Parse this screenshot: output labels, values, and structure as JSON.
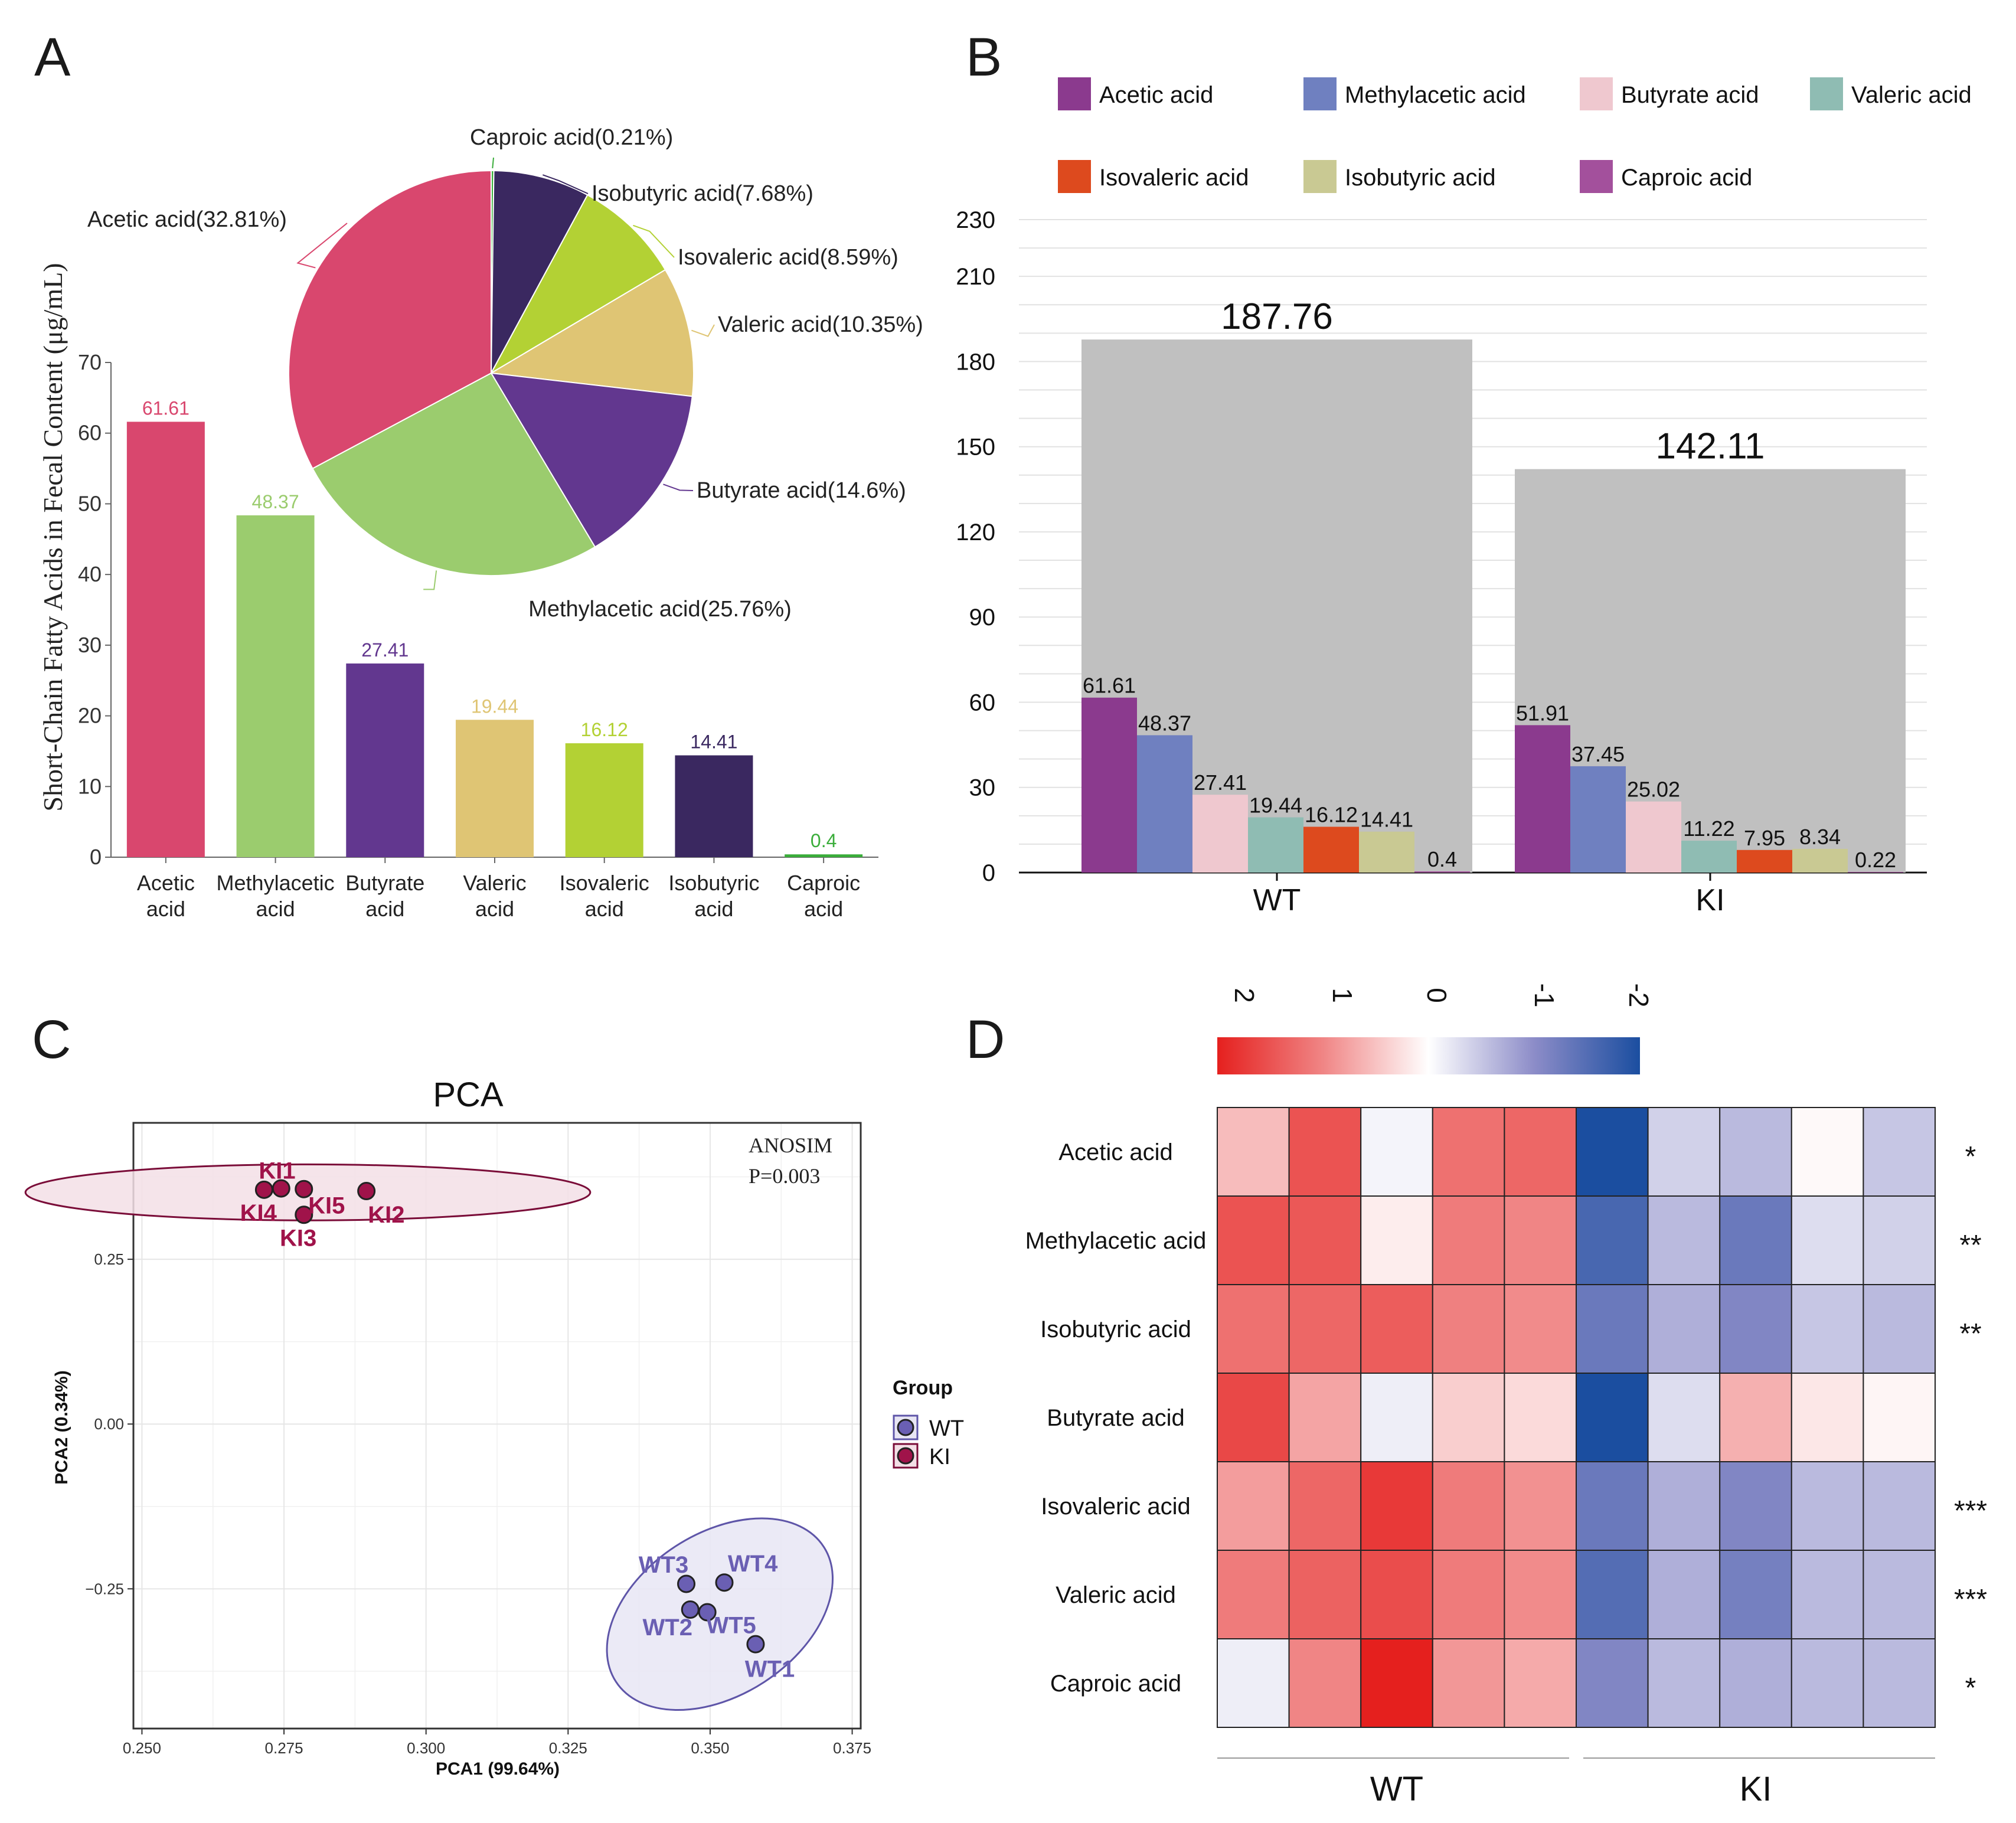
{
  "panels": {
    "A": "A",
    "B": "B",
    "C": "C",
    "D": "D"
  },
  "chart_data": [
    {
      "id": "A-bar",
      "type": "bar",
      "ylabel": "Short-Chain Fatty Acids in Fecal Content (μg/mL)",
      "ylim": [
        0,
        70
      ],
      "yticks": [
        0,
        10,
        20,
        30,
        40,
        50,
        60,
        70
      ],
      "categories": [
        [
          "Acetic",
          "acid"
        ],
        [
          "Methylacetic",
          "acid"
        ],
        [
          "Butyrate",
          "acid"
        ],
        [
          "Valeric",
          "acid"
        ],
        [
          "Isovaleric",
          "acid"
        ],
        [
          "Isobutyric",
          "acid"
        ],
        [
          "Caproic",
          "acid"
        ]
      ],
      "values": [
        61.61,
        48.37,
        27.41,
        19.44,
        16.12,
        14.41,
        0.4
      ],
      "value_labels": [
        "61.61",
        "48.37",
        "27.41",
        "19.44",
        "16.12",
        "14.41",
        "0.4"
      ],
      "colors": [
        "#d9476e",
        "#9bcc6e",
        "#62378f",
        "#dfc574",
        "#b3d134",
        "#3a2860",
        "#3aad3a"
      ]
    },
    {
      "id": "A-pie",
      "type": "pie",
      "slices": [
        {
          "name": "Caproic acid",
          "pct": 0.21,
          "label": "Caproic acid(0.21%)",
          "color": "#3aad3a"
        },
        {
          "name": "Isobutyric acid",
          "pct": 7.68,
          "label": "Isobutyric acid(7.68%)",
          "color": "#3a2860"
        },
        {
          "name": "Isovaleric acid",
          "pct": 8.59,
          "label": "Isovaleric acid(8.59%)",
          "color": "#b3d134"
        },
        {
          "name": "Valeric acid",
          "pct": 10.35,
          "label": "Valeric acid(10.35%)",
          "color": "#dfc574"
        },
        {
          "name": "Butyrate acid",
          "pct": 14.6,
          "label": "Butyrate acid(14.6%)",
          "color": "#62378f"
        },
        {
          "name": "Methylacetic acid",
          "pct": 25.76,
          "label": "Methylacetic acid(25.76%)",
          "color": "#9bcc6e"
        },
        {
          "name": "Acetic acid",
          "pct": 32.81,
          "label": "Acetic acid(32.81%)",
          "color": "#d9476e"
        }
      ]
    },
    {
      "id": "B-bar",
      "type": "bar",
      "groups": [
        "WT",
        "KI"
      ],
      "totals": [
        187.76,
        142.11
      ],
      "total_labels": [
        "187.76",
        "142.11"
      ],
      "ylim": [
        0,
        230
      ],
      "yticks": [
        0,
        30,
        60,
        90,
        120,
        150,
        180,
        210,
        230
      ],
      "series": [
        {
          "name": "Acetic acid",
          "color": "#8b3a8e",
          "values": [
            61.61,
            51.91
          ],
          "labels": [
            "61.61",
            "51.91"
          ]
        },
        {
          "name": "Methylacetic acid",
          "color": "#6f80c0",
          "values": [
            48.37,
            37.45
          ],
          "labels": [
            "48.37",
            "37.45"
          ]
        },
        {
          "name": "Butyrate acid",
          "color": "#efc8cf",
          "values": [
            27.41,
            25.02
          ],
          "labels": [
            "27.41",
            "25.02"
          ]
        },
        {
          "name": "Valeric acid",
          "color": "#8fbcb3",
          "values": [
            19.44,
            11.22
          ],
          "labels": [
            "19.44",
            "11.22"
          ]
        },
        {
          "name": "Isovaleric acid",
          "color": "#dd4a1e",
          "values": [
            16.12,
            7.95
          ],
          "labels": [
            "16.12",
            "7.95"
          ]
        },
        {
          "name": "Isobutyric acid",
          "color": "#c9c993",
          "values": [
            14.41,
            8.34
          ],
          "labels": [
            "14.41",
            "8.34"
          ]
        },
        {
          "name": "Caproic acid",
          "color": "#a3509c",
          "values": [
            0.4,
            0.22
          ],
          "labels": [
            "0.4",
            "0.22"
          ]
        }
      ],
      "total_color": "#c0c0c0"
    },
    {
      "id": "C-scatter",
      "type": "scatter",
      "title": "PCA",
      "xlabel": "PCA1 (99.64%)",
      "ylabel": "PCA2 (0.34%)",
      "xlim": [
        0.2485,
        0.3765
      ],
      "ylim": [
        -0.462,
        0.457
      ],
      "xticks": [
        0.25,
        0.275,
        0.3,
        0.325,
        0.35,
        0.375
      ],
      "xtick_labels": [
        "0.250",
        "0.275",
        "0.300",
        "0.325",
        "0.350",
        "0.375"
      ],
      "yticks": [
        0.25,
        0.0,
        -0.25
      ],
      "ytick_labels": [
        "0.25",
        "0.00",
        "−0.25"
      ],
      "annotation": [
        "ANOSIM",
        "P=0.003"
      ],
      "legend_title": "Group",
      "groups": [
        {
          "name": "WT",
          "fill": "#6a5fb3",
          "stroke": "#5e55a8",
          "label_color": "#6a5fb3",
          "ellipse_fill": "#e8e6f4",
          "ellipse": {
            "cx": 0.3517,
            "cy": -0.2885,
            "rx": 0.0218,
            "ry": 0.123,
            "angle_deg": -33
          },
          "points": [
            {
              "label": "WT1",
              "x": 0.358,
              "y": -0.334,
              "lx": 0.3605,
              "ly": -0.371
            },
            {
              "label": "WT2",
              "x": 0.3465,
              "y": -0.2815,
              "lx": 0.3425,
              "ly": -0.308
            },
            {
              "label": "WT3",
              "x": 0.3458,
              "y": -0.2425,
              "lx": 0.3418,
              "ly": -0.213
            },
            {
              "label": "WT4",
              "x": 0.3525,
              "y": -0.2405,
              "lx": 0.3575,
              "ly": -0.211
            },
            {
              "label": "WT5",
              "x": 0.3495,
              "y": -0.2855,
              "lx": 0.3537,
              "ly": -0.305
            }
          ]
        },
        {
          "name": "KI",
          "fill": "#a0134a",
          "stroke": "#7a0c38",
          "label_color": "#a0134a",
          "ellipse_fill": "#f3dfe6",
          "ellipse": {
            "cx": 0.2792,
            "cy": 0.3515,
            "rx": 0.0497,
            "ry": 0.0425,
            "angle_deg": 0
          },
          "points": [
            {
              "label": "KI1",
              "x": 0.2745,
              "y": 0.3575,
              "lx": 0.2738,
              "ly": 0.385
            },
            {
              "label": "KI2",
              "x": 0.2895,
              "y": 0.3535,
              "lx": 0.293,
              "ly": 0.318
            },
            {
              "label": "KI3",
              "x": 0.2785,
              "y": 0.3175,
              "lx": 0.2775,
              "ly": 0.283
            },
            {
              "label": "KI4",
              "x": 0.2715,
              "y": 0.3555,
              "lx": 0.2705,
              "ly": 0.321
            },
            {
              "label": "KI5",
              "x": 0.2785,
              "y": 0.3565,
              "lx": 0.2825,
              "ly": 0.332
            }
          ]
        }
      ]
    },
    {
      "id": "D-heatmap",
      "type": "heatmap",
      "colorbar_ticks": [
        "2",
        "1",
        "0",
        "-1",
        "-2"
      ],
      "colorbar_range": [
        2,
        -2
      ],
      "rows": [
        "Acetic acid",
        "Methylacetic acid",
        "Isobutyric acid",
        "Butyrate acid",
        "Isovaleric acid",
        "Valeric acid",
        "Caproic acid"
      ],
      "significance": [
        "*",
        "**",
        "**",
        "",
        "***",
        "***",
        "*"
      ],
      "groups": [
        {
          "name": "WT",
          "cols": 5
        },
        {
          "name": "KI",
          "cols": 5
        }
      ],
      "values": [
        [
          0.55,
          1.5,
          -0.1,
          1.2,
          1.3,
          -2.0,
          -0.4,
          -0.6,
          0.05,
          -0.5
        ],
        [
          1.5,
          1.45,
          0.15,
          1.1,
          1.0,
          -1.6,
          -0.6,
          -1.3,
          -0.3,
          -0.4
        ],
        [
          1.2,
          1.3,
          1.4,
          1.05,
          0.95,
          -1.3,
          -0.7,
          -1.1,
          -0.5,
          -0.6
        ],
        [
          1.6,
          0.75,
          -0.15,
          0.4,
          0.3,
          -2.2,
          -0.3,
          0.65,
          0.2,
          0.08
        ],
        [
          0.8,
          1.3,
          1.75,
          1.1,
          0.9,
          -1.3,
          -0.7,
          -1.1,
          -0.6,
          -0.6
        ],
        [
          1.1,
          1.35,
          1.55,
          1.1,
          0.95,
          -1.5,
          -0.7,
          -1.2,
          -0.6,
          -0.6
        ],
        [
          -0.15,
          1.0,
          2.1,
          0.85,
          0.7,
          -1.1,
          -0.6,
          -0.7,
          -0.6,
          -0.6
        ]
      ]
    }
  ]
}
